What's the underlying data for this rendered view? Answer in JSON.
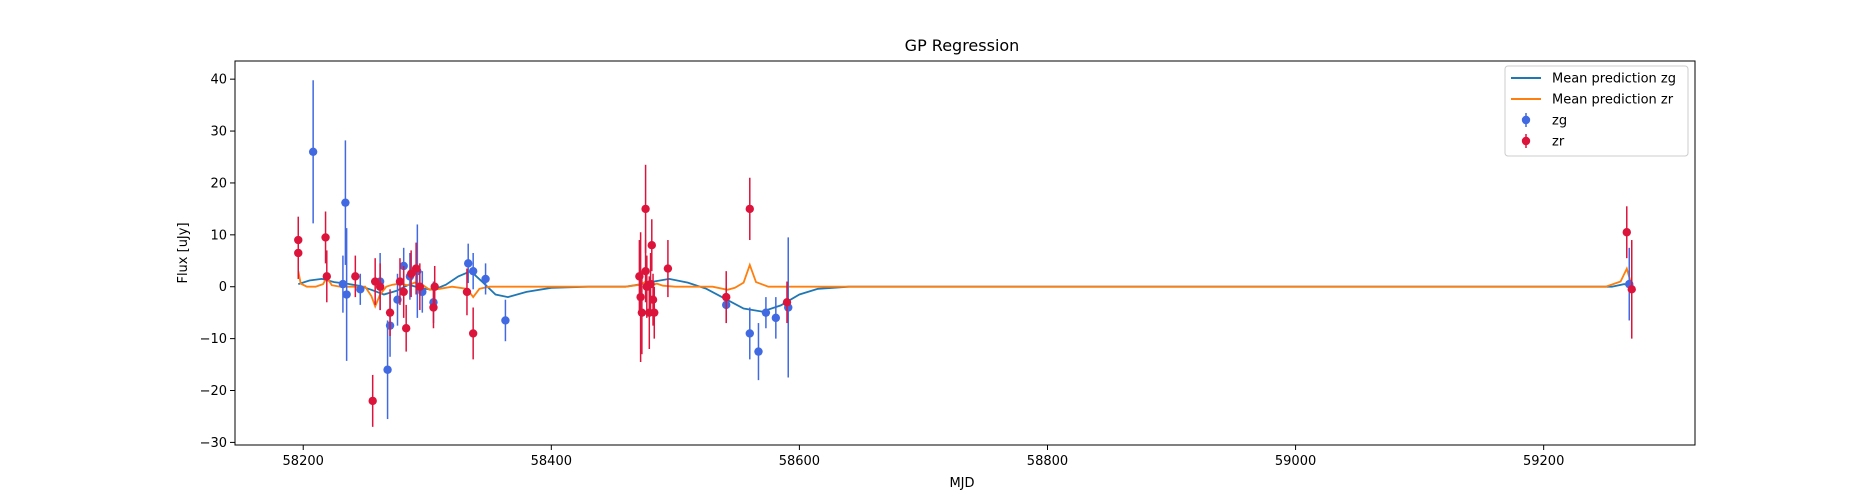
{
  "chart_data": {
    "type": "scatter",
    "title": "GP Regression",
    "xlabel": "MJD",
    "ylabel": "Flux [uJy]",
    "xlim": [
      58145,
      59322
    ],
    "ylim": [
      -30.5,
      43.5
    ],
    "xticks": [
      58200,
      58400,
      58600,
      58800,
      59000,
      59200
    ],
    "yticks": [
      -30,
      -20,
      -10,
      0,
      10,
      20,
      30,
      40
    ],
    "grid": false,
    "legend_position": "top-right",
    "colors": {
      "zg_points": "#4169e1",
      "zr_points": "#dc143c",
      "zg_line": "#1f77b4",
      "zr_line": "#ff7f0e"
    },
    "lines": [
      {
        "name": "Mean prediction zg",
        "color": "#1f77b4",
        "x": [
          58196,
          58205,
          58215,
          58225,
          58235,
          58245,
          58255,
          58265,
          58275,
          58285,
          58295,
          58305,
          58315,
          58325,
          58335,
          58345,
          58355,
          58365,
          58380,
          58400,
          58430,
          58460,
          58470,
          58480,
          58495,
          58510,
          58525,
          58540,
          58555,
          58570,
          58585,
          58600,
          58615,
          58640,
          58700,
          58900,
          59100,
          59255,
          59265,
          59272
        ],
        "y": [
          0.5,
          1.2,
          1.5,
          0.9,
          0.6,
          0.2,
          -0.6,
          -1.5,
          -0.8,
          0.4,
          -0.3,
          -0.6,
          0.4,
          2.0,
          3.0,
          0.8,
          -1.5,
          -2.0,
          -1.0,
          -0.2,
          0,
          0,
          0.4,
          0.9,
          1.5,
          0.8,
          -0.4,
          -2.3,
          -4.2,
          -4.8,
          -3.6,
          -1.5,
          -0.4,
          0,
          0,
          0,
          0,
          0,
          0.5,
          0
        ]
      },
      {
        "name": "Mean prediction zr",
        "color": "#ff7f0e",
        "x": [
          58196,
          58198,
          58203,
          58210,
          58216,
          58219,
          58223,
          58230,
          58240,
          58250,
          58255,
          58258,
          58262,
          58267,
          58272,
          58278,
          58284,
          58290,
          58296,
          58302,
          58310,
          58320,
          58332,
          58337,
          58342,
          58350,
          58370,
          58400,
          58460,
          58472,
          58476,
          58480,
          58485,
          58490,
          58500,
          58530,
          58542,
          58548,
          58555,
          58560,
          58565,
          58575,
          58590,
          58620,
          58700,
          58900,
          59100,
          59250,
          59262,
          59267,
          59270,
          59272
        ],
        "y": [
          3.0,
          0.6,
          0.0,
          0.0,
          0.5,
          1.8,
          0.3,
          0.0,
          0.0,
          0.0,
          -1.8,
          -3.8,
          -1.5,
          0.0,
          0.4,
          0.6,
          0.3,
          0.8,
          0.4,
          -0.6,
          -0.4,
          0.0,
          -0.4,
          -2.0,
          -0.4,
          0.0,
          0.0,
          0.0,
          0.0,
          0.4,
          1.0,
          0.2,
          0.6,
          0.2,
          0.0,
          0.0,
          -0.6,
          -0.2,
          0.8,
          4.2,
          0.9,
          0.0,
          0.0,
          0.0,
          0.0,
          0.0,
          0.0,
          0.0,
          1.0,
          3.5,
          1.0,
          0.0
        ]
      }
    ],
    "series": [
      {
        "name": "zg",
        "color": "#4169e1",
        "points": [
          {
            "x": 58208,
            "y": 26.0,
            "err": 13.8
          },
          {
            "x": 58232,
            "y": 0.5,
            "err": 5.5
          },
          {
            "x": 58234,
            "y": 16.2,
            "err": 12.0
          },
          {
            "x": 58235,
            "y": -1.5,
            "err": 12.8
          },
          {
            "x": 58246,
            "y": -0.5,
            "err": 3.0
          },
          {
            "x": 58262,
            "y": 1.0,
            "err": 5.5
          },
          {
            "x": 58268,
            "y": -16.0,
            "err": 9.5
          },
          {
            "x": 58270,
            "y": -7.5,
            "err": 6.0
          },
          {
            "x": 58276,
            "y": -2.5,
            "err": 5.0
          },
          {
            "x": 58281,
            "y": 4.0,
            "err": 3.5
          },
          {
            "x": 58286,
            "y": 2.0,
            "err": 4.5
          },
          {
            "x": 58292,
            "y": 3.0,
            "err": 9.0
          },
          {
            "x": 58296,
            "y": -1.0,
            "err": 4.0
          },
          {
            "x": 58305,
            "y": -3.0,
            "err": 4.0
          },
          {
            "x": 58333,
            "y": 4.5,
            "err": 3.8
          },
          {
            "x": 58337,
            "y": 3.0,
            "err": 3.5
          },
          {
            "x": 58347,
            "y": 1.5,
            "err": 3.0
          },
          {
            "x": 58363,
            "y": -6.5,
            "err": 4.0
          },
          {
            "x": 58541,
            "y": -3.5,
            "err": 3.5
          },
          {
            "x": 58560,
            "y": -9.0,
            "err": 5.0
          },
          {
            "x": 58567,
            "y": -12.5,
            "err": 5.5
          },
          {
            "x": 58573,
            "y": -5.0,
            "err": 3.0
          },
          {
            "x": 58581,
            "y": -6.0,
            "err": 4.0
          },
          {
            "x": 58591,
            "y": -4.0,
            "err": 13.5
          },
          {
            "x": 59269,
            "y": 0.5,
            "err": 7.0
          }
        ]
      },
      {
        "name": "zr",
        "color": "#dc143c",
        "points": [
          {
            "x": 58196,
            "y": 9.0,
            "err": 4.5
          },
          {
            "x": 58196,
            "y": 6.5,
            "err": 5.0
          },
          {
            "x": 58218,
            "y": 9.5,
            "err": 5.0
          },
          {
            "x": 58219,
            "y": 2.0,
            "err": 5.0
          },
          {
            "x": 58242,
            "y": 2.0,
            "err": 4.0
          },
          {
            "x": 58256,
            "y": -22.0,
            "err": 5.0
          },
          {
            "x": 58258,
            "y": 1.0,
            "err": 4.5
          },
          {
            "x": 58262,
            "y": 0.0,
            "err": 4.5
          },
          {
            "x": 58270,
            "y": -5.0,
            "err": 4.5
          },
          {
            "x": 58278,
            "y": 1.0,
            "err": 4.5
          },
          {
            "x": 58281,
            "y": -1.0,
            "err": 5.0
          },
          {
            "x": 58283,
            "y": -8.0,
            "err": 4.5
          },
          {
            "x": 58287,
            "y": 2.5,
            "err": 4.5
          },
          {
            "x": 58291,
            "y": 3.5,
            "err": 5.0
          },
          {
            "x": 58294,
            "y": 0.0,
            "err": 4.5
          },
          {
            "x": 58305,
            "y": -4.0,
            "err": 4.0
          },
          {
            "x": 58306,
            "y": 0.0,
            "err": 4.0
          },
          {
            "x": 58332,
            "y": -1.0,
            "err": 4.5
          },
          {
            "x": 58337,
            "y": -9.0,
            "err": 5.0
          },
          {
            "x": 58471,
            "y": 2.0,
            "err": 7.0
          },
          {
            "x": 58472,
            "y": -2.0,
            "err": 12.5
          },
          {
            "x": 58473,
            "y": -5.0,
            "err": 8.0
          },
          {
            "x": 58476,
            "y": 3.0,
            "err": 6.0
          },
          {
            "x": 58476,
            "y": 15.0,
            "err": 8.5
          },
          {
            "x": 58477,
            "y": 0.0,
            "err": 6.0
          },
          {
            "x": 58479,
            "y": -5.0,
            "err": 7.0
          },
          {
            "x": 58480,
            "y": 0.5,
            "err": 6.0
          },
          {
            "x": 58481,
            "y": 8.0,
            "err": 5.0
          },
          {
            "x": 58482,
            "y": -2.5,
            "err": 5.0
          },
          {
            "x": 58483,
            "y": -5.0,
            "err": 5.0
          },
          {
            "x": 58494,
            "y": 3.5,
            "err": 5.5
          },
          {
            "x": 58541,
            "y": -2.0,
            "err": 5.0
          },
          {
            "x": 58560,
            "y": 15.0,
            "err": 6.0
          },
          {
            "x": 58590,
            "y": -3.0,
            "err": 4.0
          },
          {
            "x": 59267,
            "y": 10.5,
            "err": 5.0
          },
          {
            "x": 59271,
            "y": -0.5,
            "err": 9.5
          }
        ]
      }
    ]
  }
}
